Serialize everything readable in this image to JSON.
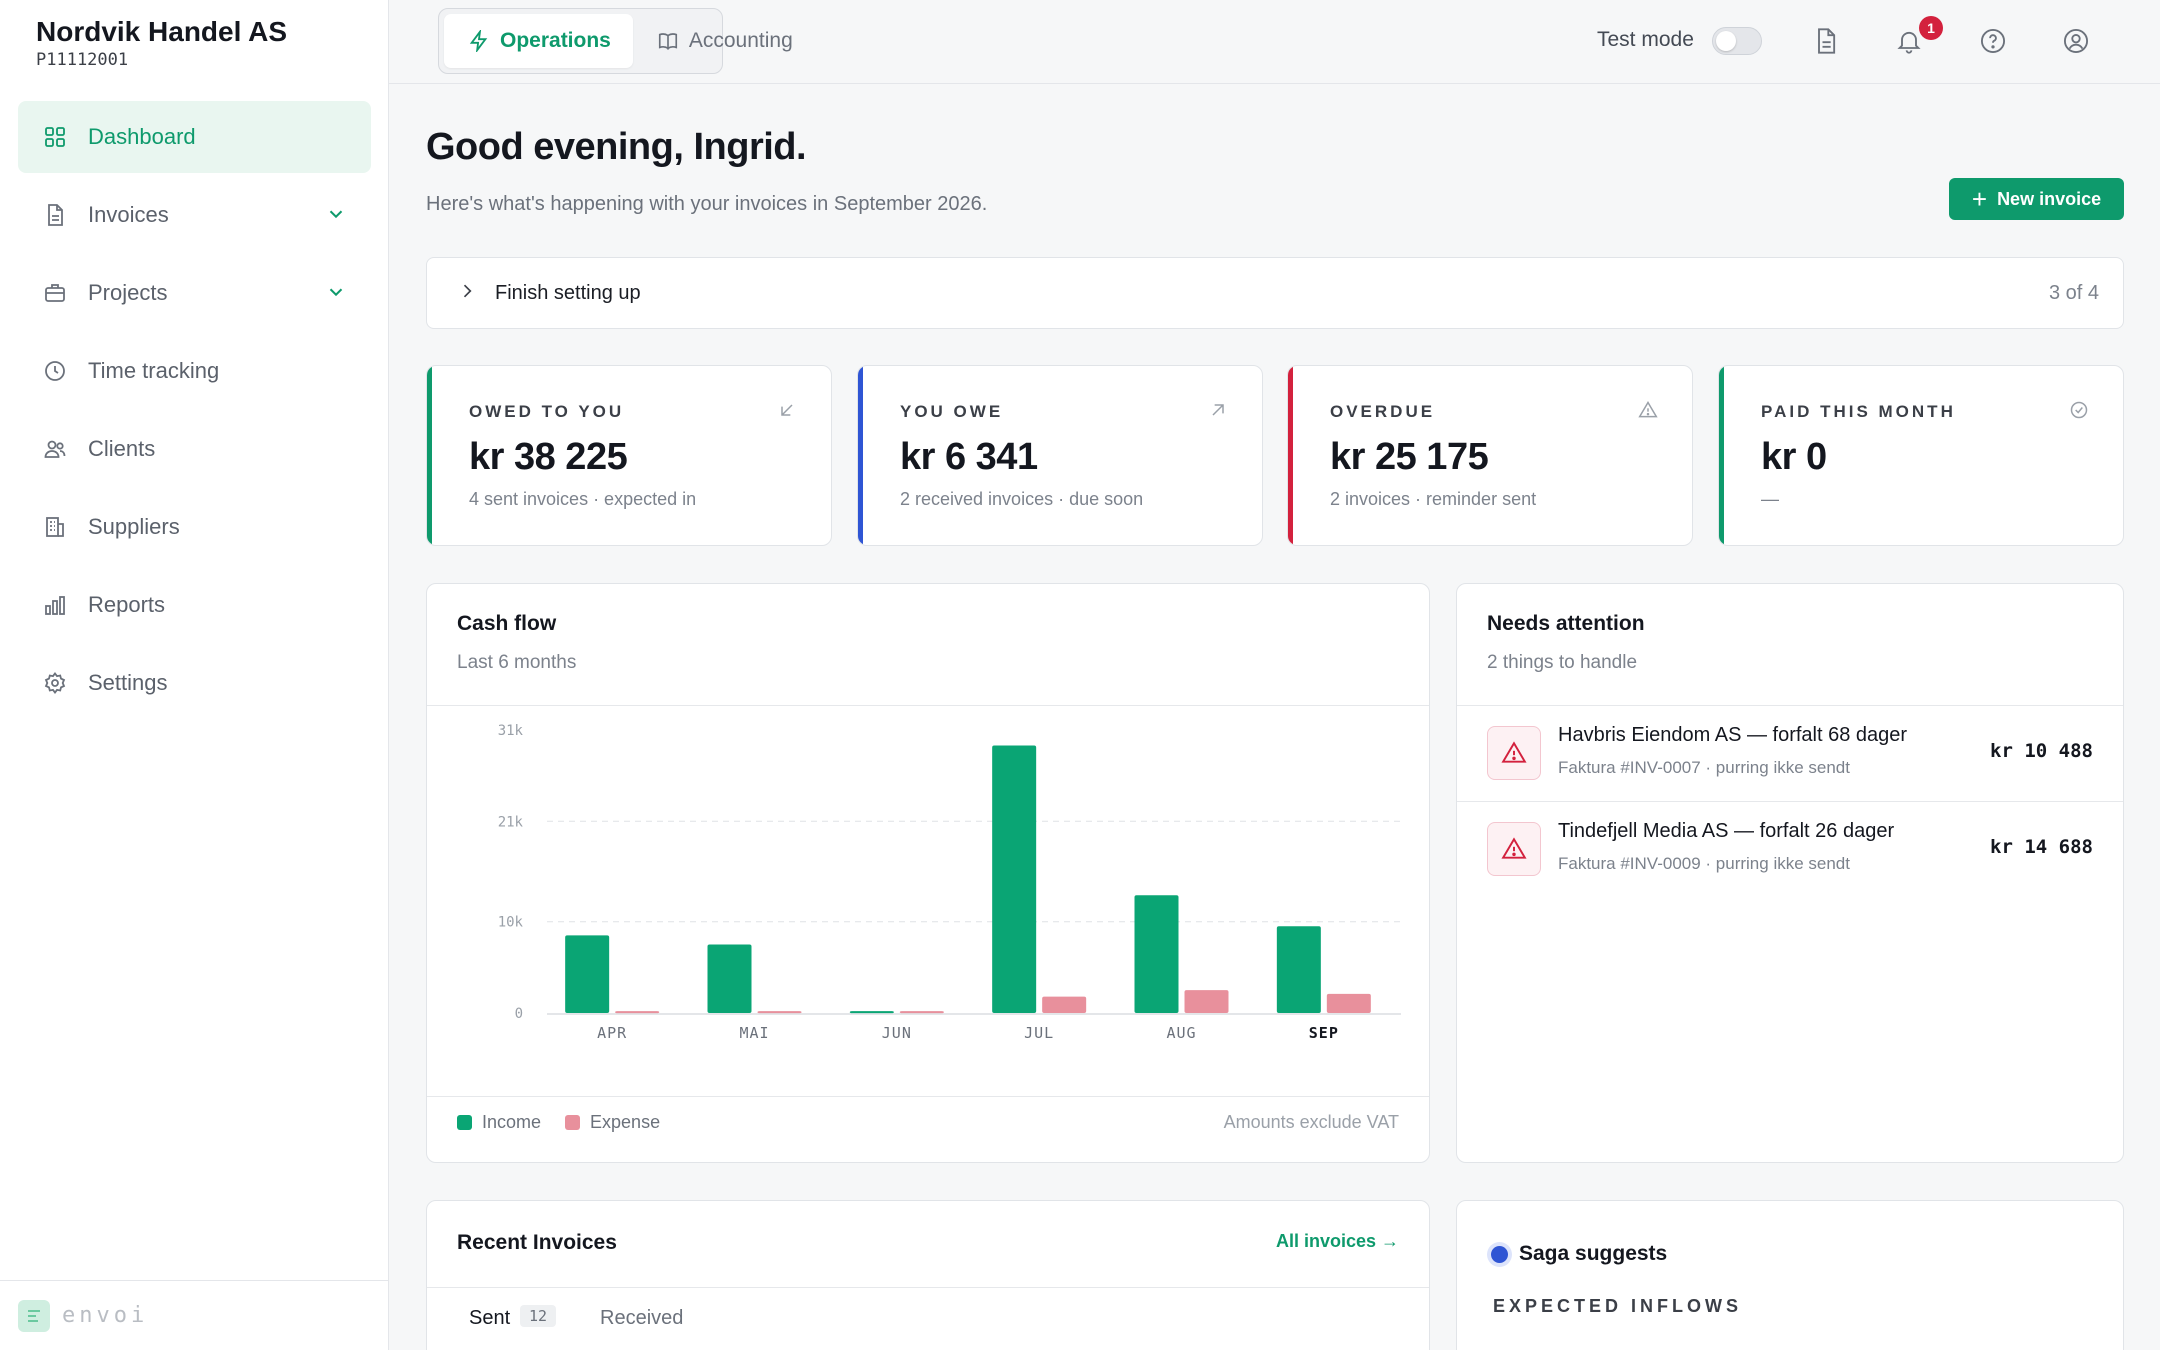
{
  "company": {
    "name": "Nordvik Handel AS",
    "id": "P11112001"
  },
  "sidebar": {
    "items": [
      {
        "label": "Dashboard",
        "icon": "grid-icon"
      },
      {
        "label": "Invoices",
        "icon": "document-icon"
      },
      {
        "label": "Projects",
        "icon": "briefcase-icon"
      },
      {
        "label": "Time tracking",
        "icon": "clock-icon"
      },
      {
        "label": "Clients",
        "icon": "users-icon"
      },
      {
        "label": "Suppliers",
        "icon": "building-icon"
      },
      {
        "label": "Reports",
        "icon": "bar-chart-icon"
      },
      {
        "label": "Settings",
        "icon": "gear-icon"
      }
    ],
    "brand": "envoi"
  },
  "topbar": {
    "modes": [
      "Operations",
      "Accounting"
    ],
    "test_mode_label": "Test mode",
    "notification_count": "1"
  },
  "header": {
    "greeting": "Good evening, Ingrid.",
    "subtitle": "Here's what's happening with your invoices in September 2026.",
    "new_invoice": "New invoice"
  },
  "setup": {
    "title": "Finish setting up",
    "progress": "3 of 4"
  },
  "kpis": [
    {
      "label": "OWED TO YOU",
      "value": "kr 38 225",
      "note": "4 sent invoices · expected in",
      "accent": "#0e9a6c"
    },
    {
      "label": "YOU OWE",
      "value": "kr 6 341",
      "note": "2 received invoices · due soon",
      "accent": "#2f55d4"
    },
    {
      "label": "OVERDUE",
      "value": "kr 25 175",
      "note": "2 invoices · reminder sent",
      "accent": "#d3213d"
    },
    {
      "label": "PAID THIS MONTH",
      "value": "kr 0",
      "note": "—",
      "accent": "#0e9a6c"
    }
  ],
  "cashflow": {
    "title": "Cash flow",
    "subtitle": "Last 6 months",
    "legend_income": "Income",
    "legend_expense": "Expense",
    "note": "Amounts exclude VAT"
  },
  "chart_data": {
    "type": "bar",
    "categories": [
      "APR",
      "MAI",
      "JUN",
      "JUL",
      "AUG",
      "SEP"
    ],
    "series": [
      {
        "name": "Income",
        "values": [
          8500,
          7500,
          200,
          29300,
          12900,
          9500
        ],
        "color": "#0aa574"
      },
      {
        "name": "Expense",
        "values": [
          200,
          200,
          200,
          1800,
          2500,
          2100
        ],
        "color": "#e8909c"
      }
    ],
    "ylim": [
      0,
      31000
    ],
    "y_ticks": [
      "0",
      "10k",
      "21k",
      "31k"
    ],
    "y_tick_values": [
      0,
      10000,
      21000,
      31000
    ],
    "highlight_category": "SEP",
    "grid": true
  },
  "attention": {
    "title": "Needs attention",
    "subtitle": "2 things to handle",
    "items": [
      {
        "title": "Havbris Eiendom AS — forfalt 68 dager",
        "sub": "Faktura #INV-0007 · purring ikke sendt",
        "amount": "kr 10 488"
      },
      {
        "title": "Tindefjell Media AS — forfalt 26 dager",
        "sub": "Faktura #INV-0009 · purring ikke sendt",
        "amount": "kr 14 688"
      }
    ]
  },
  "recent": {
    "title": "Recent Invoices",
    "all_link": "All invoices →",
    "tab_sent": "Sent",
    "tab_sent_count": "12",
    "tab_received": "Received"
  },
  "saga": {
    "title": "Saga suggests",
    "section": "EXPECTED INFLOWS"
  }
}
